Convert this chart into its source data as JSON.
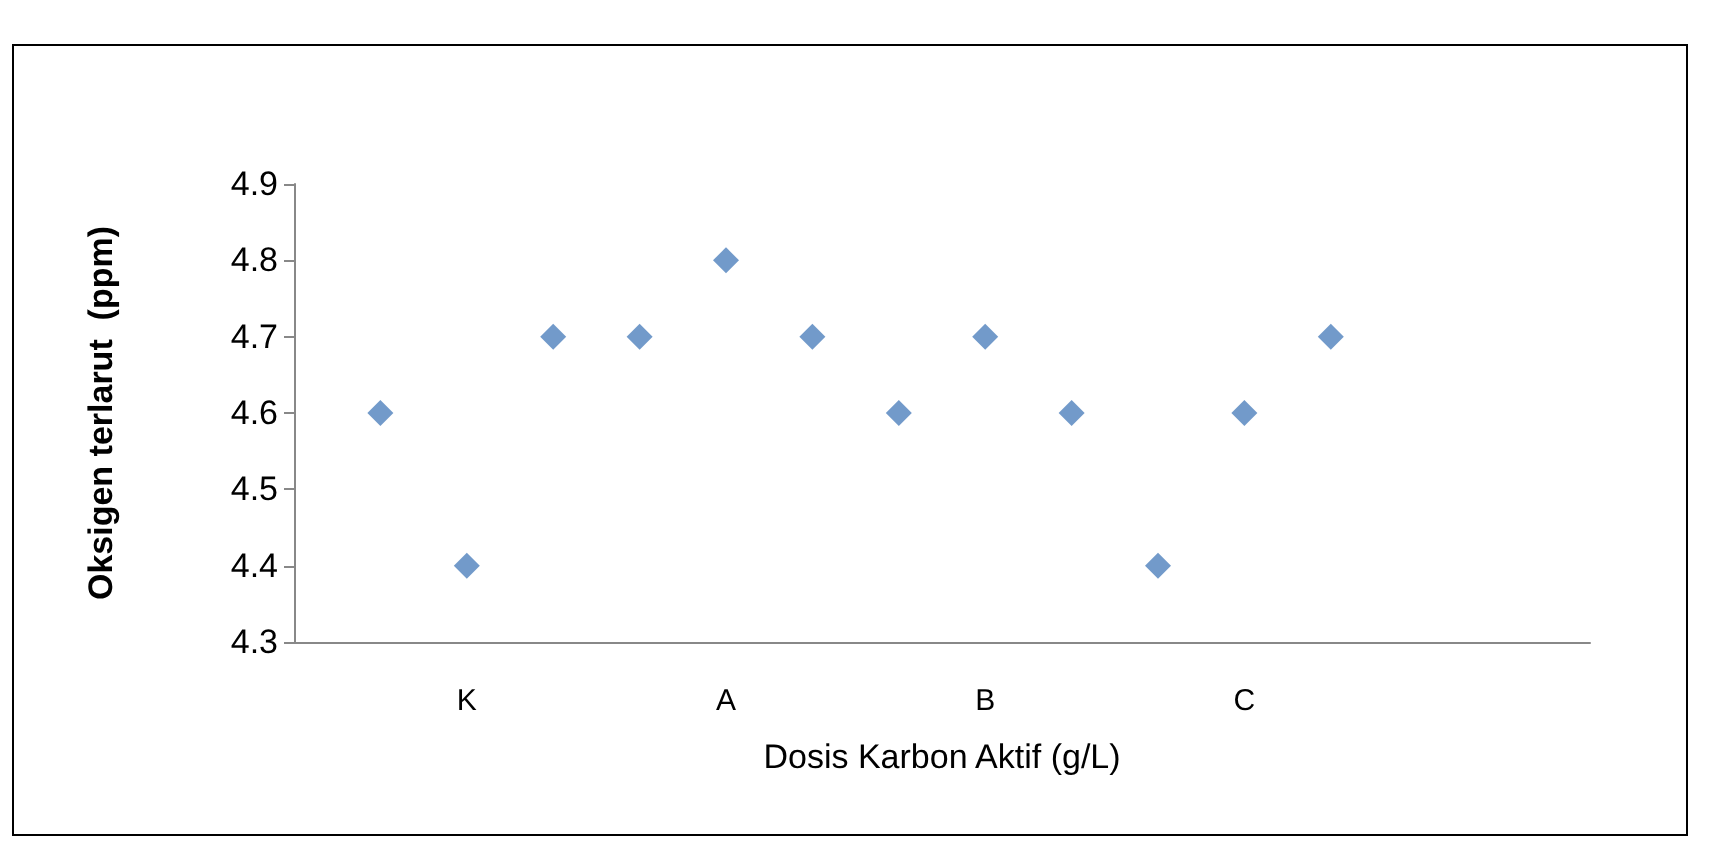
{
  "chart_data": {
    "type": "scatter",
    "xlabel": "Dosis Karbon Aktif (g/L)",
    "ylabel": "Oksigen terlarut  (ppm)",
    "categories": [
      null,
      null,
      "K",
      null,
      null,
      "A",
      null,
      null,
      "B",
      null,
      null,
      "C",
      null,
      null,
      null,
      null
    ],
    "values": [
      null,
      4.6,
      4.4,
      4.7,
      4.7,
      4.8,
      4.7,
      4.6,
      4.7,
      4.6,
      4.4,
      4.6,
      4.7,
      null,
      null,
      null
    ],
    "color": "#4f81bd",
    "marker": "diamond",
    "ylim": [
      4.3,
      4.9
    ],
    "yticks": [
      4.3,
      4.4,
      4.5,
      4.6,
      4.7,
      4.8,
      4.9
    ],
    "grid": false
  }
}
